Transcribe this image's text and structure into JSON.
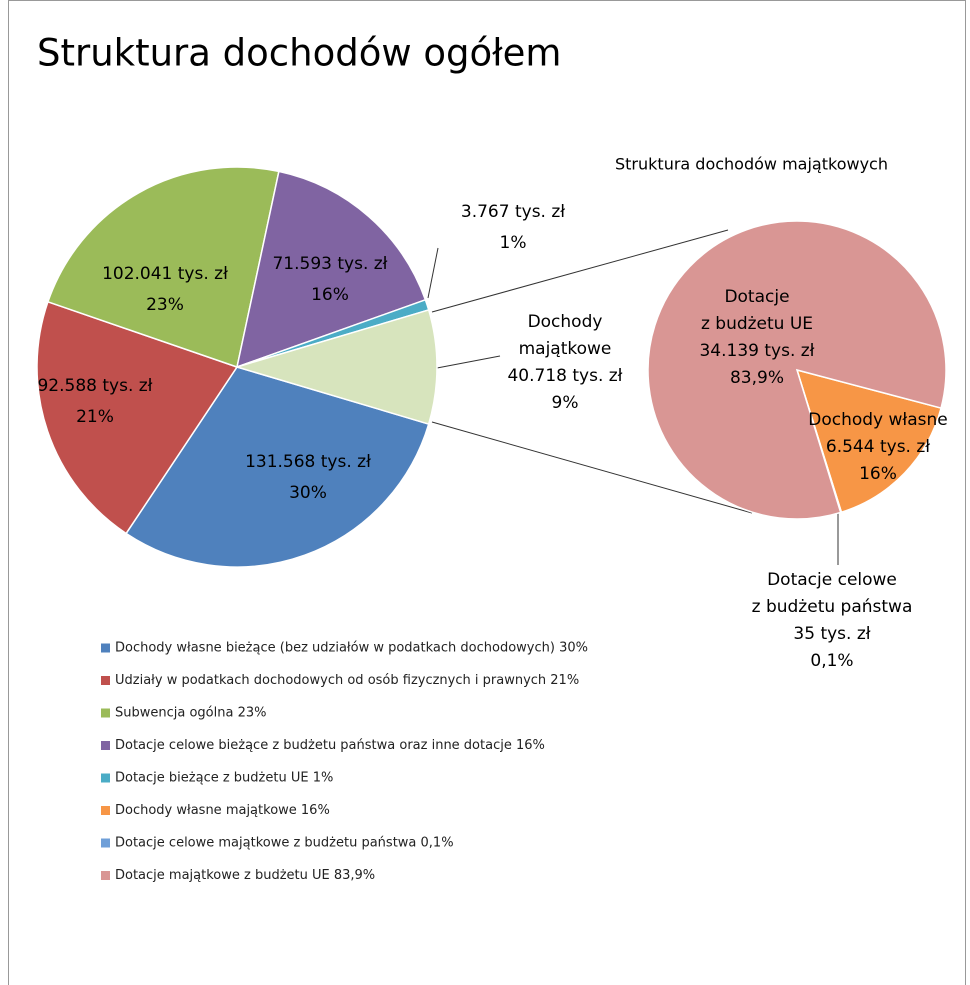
{
  "chart_data": [
    {
      "type": "pie",
      "title": "Struktura dochodów ogółem",
      "categories": [
        "Dochody własne bieżące",
        "Udziały w podatkach",
        "Subwencja ogólna",
        "Dotacje celowe bieżące",
        "Dotacje bieżące z budżetu UE",
        "Dochody majątkowe"
      ],
      "values": [
        131568,
        92588,
        102041,
        71593,
        3767,
        40718
      ],
      "value_labels": [
        "131.568 tys. zł",
        "92.588 tys. zł",
        "102.041 tys. zł",
        "71.593 tys. zł",
        "3.767 tys. zł",
        "40.718 tys. zł"
      ],
      "percent_labels": [
        "30%",
        "21%",
        "23%",
        "16%",
        "1%",
        "9%"
      ],
      "label_lines": [
        null,
        null,
        null,
        null,
        null,
        [
          "Dochody",
          "majątkowe"
        ]
      ],
      "colors": [
        "#4f81bd",
        "#c0504d",
        "#9bbb59",
        "#8064a2",
        "#4bacc6",
        "#d7e4bd"
      ],
      "legend": [
        {
          "label": "Dochody własne bieżące (bez udziałów w podatkach dochodowych) 30%",
          "color": "#4f81bd"
        },
        {
          "label": "Udziały w podatkach dochodowych od osób fizycznych i prawnych 21%",
          "color": "#c0504d"
        },
        {
          "label": "Subwencja ogólna 23%",
          "color": "#9bbb59"
        },
        {
          "label": "Dotacje celowe bieżące z budżetu państwa oraz inne dotacje 16%",
          "color": "#8064a2"
        },
        {
          "label": "Dotacje bieżące z budżetu UE 1%",
          "color": "#4bacc6"
        },
        {
          "label": "Dochody własne majątkowe 16%",
          "color": "#f79646"
        },
        {
          "label": "Dotacje celowe majątkowe z budżetu państwa 0,1%",
          "color": "#6f9fd8"
        },
        {
          "label": "Dotacje majątkowe z budżetu UE 83,9%",
          "color": "#d99694"
        }
      ]
    },
    {
      "type": "pie",
      "subtitle": "Struktura dochodów majątkowych",
      "categories": [
        "Dochody własne",
        "Dotacje celowe z budżetu państwa",
        "Dotacje z budżetu UE"
      ],
      "values": [
        6544,
        35,
        34139
      ],
      "value_labels": [
        "6.544 tys. zł",
        "35 tys. zł",
        "34.139 tys. zł"
      ],
      "percent_labels": [
        "16%",
        "0,1%",
        "83,9%"
      ],
      "label_lines": [
        [
          "Dochody własne"
        ],
        [
          "Dotacje celowe",
          "z budżetu państwa"
        ],
        [
          "Dotacje",
          "z budżetu UE"
        ]
      ],
      "colors": [
        "#f79646",
        "#6f9fd8",
        "#d99694"
      ]
    }
  ]
}
